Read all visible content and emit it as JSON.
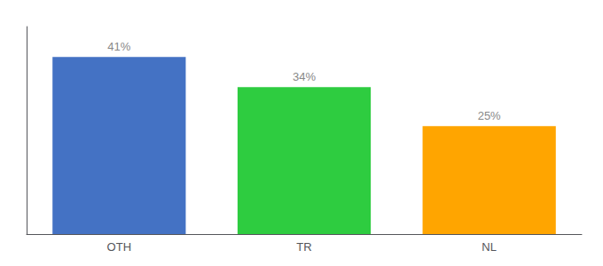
{
  "chart_data": {
    "type": "bar",
    "categories": [
      "OTH",
      "TR",
      "NL"
    ],
    "values": [
      41,
      34,
      25
    ],
    "value_labels": [
      "41%",
      "34%",
      "25%"
    ],
    "colors": [
      "#4472C4",
      "#2ECC40",
      "#FFA500"
    ],
    "ylim": [
      0,
      48
    ],
    "grid": false,
    "data_labels": true,
    "tick_labels": "x"
  }
}
